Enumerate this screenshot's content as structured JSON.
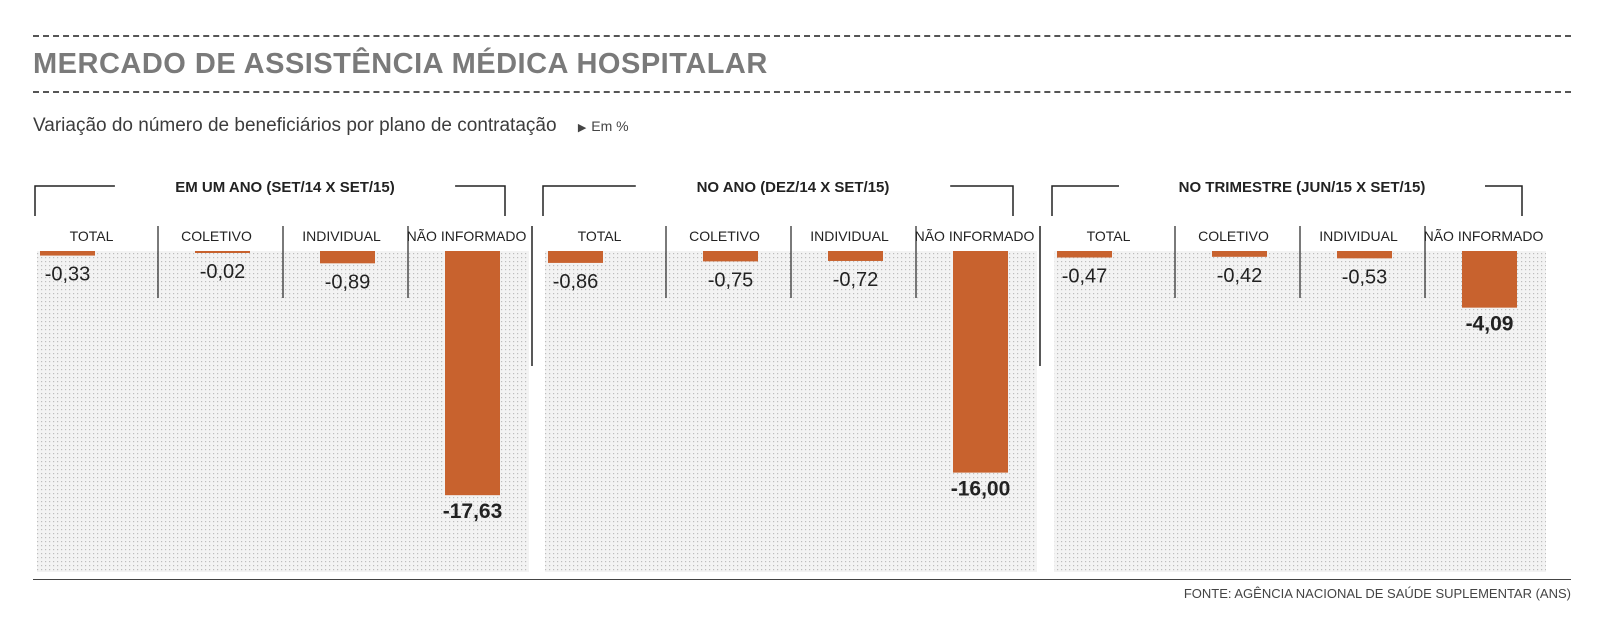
{
  "header": {
    "title": "MERCADO DE ASSISTÊNCIA MÉDICA HOSPITALAR",
    "subtitle": "Variação do número de beneficiários por plano de contratação",
    "unit_marker": "▶",
    "unit": "Em %"
  },
  "source": "FONTE: AGÊNCIA NACIONAL DE SAÚDE SUPLEMENTAR (ANS)",
  "colors": {
    "bar": "#c8622e",
    "panel_bg": "#f1f1f1",
    "dots": "#bdbdbd",
    "text": "#333333"
  },
  "chart_data": [
    {
      "type": "bar",
      "title": "EM UM ANO (SET/14 X SET/15)",
      "categories": [
        "TOTAL",
        "COLETIVO",
        "INDIVIDUAL",
        "NÃO INFORMADO"
      ],
      "values": [
        -0.33,
        -0.02,
        -0.89,
        -17.63
      ],
      "labels": [
        "-0,33",
        "-0,02",
        "-0,89",
        "-17,63"
      ],
      "ylim": [
        -20,
        0
      ]
    },
    {
      "type": "bar",
      "title": "NO ANO (DEZ/14 X SET/15)",
      "categories": [
        "TOTAL",
        "COLETIVO",
        "INDIVIDUAL",
        "NÃO INFORMADO"
      ],
      "values": [
        -0.86,
        -0.75,
        -0.72,
        -16.0
      ],
      "labels": [
        "-0,86",
        "-0,75",
        "-0,72",
        "-16,00"
      ],
      "ylim": [
        -20,
        0
      ]
    },
    {
      "type": "bar",
      "title": "NO TRIMESTRE (JUN/15 X SET/15)",
      "categories": [
        "TOTAL",
        "COLETIVO",
        "INDIVIDUAL",
        "NÃO INFORMADO"
      ],
      "values": [
        -0.47,
        -0.42,
        -0.53,
        -4.09
      ],
      "labels": [
        "-0,47",
        "-0,42",
        "-0,53",
        "-4,09"
      ],
      "ylim": [
        -20,
        0
      ]
    }
  ]
}
